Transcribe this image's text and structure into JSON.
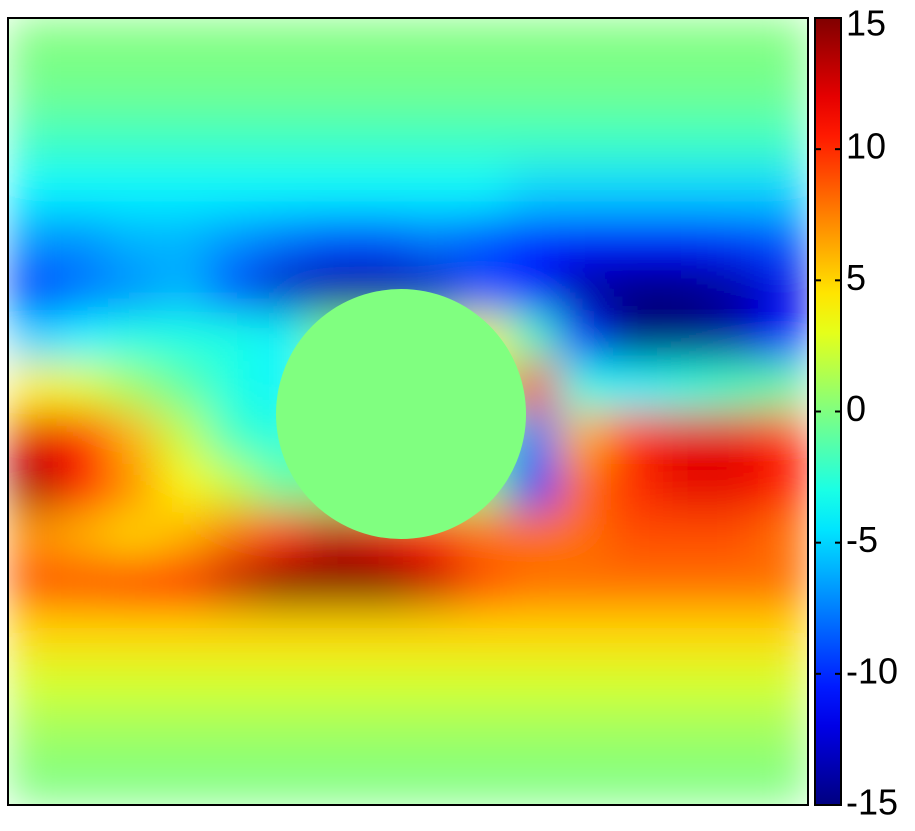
{
  "chart_data": {
    "type": "heatmap",
    "colormap": "jet",
    "values": [
      [
        0,
        0,
        0,
        0,
        0,
        0,
        0,
        0,
        0,
        0,
        0,
        0,
        0,
        0,
        0,
        0
      ],
      [
        -0.5,
        -0.5,
        -0.5,
        -0.5,
        -0.5,
        -0.5,
        -0.5,
        -0.5,
        -0.5,
        -0.5,
        -0.5,
        -0.5,
        -0.5,
        -0.5,
        -0.5,
        -0.5
      ],
      [
        -2,
        -2,
        -2,
        -2,
        -2,
        -2,
        -2,
        -2,
        -2,
        -2,
        -2,
        -2,
        -2,
        -2,
        -2,
        -2
      ],
      [
        -4,
        -4,
        -4,
        -4,
        -4,
        -4,
        -4,
        -4,
        -4,
        -4,
        -5,
        -5,
        -5,
        -5,
        -5,
        -5
      ],
      [
        -7,
        -7,
        -6,
        -6,
        -7,
        -8,
        -9,
        -9,
        -8,
        -9,
        -10,
        -11,
        -11,
        -11,
        -10,
        -9
      ],
      [
        -10,
        -8,
        -7,
        -6,
        -9,
        -13,
        -14,
        -14,
        -13,
        -9,
        -11,
        -14,
        -15,
        -15,
        -14,
        -12
      ],
      [
        -5,
        -4,
        -3,
        -3,
        -3,
        -4,
        0,
        0,
        0,
        4,
        -2,
        -10,
        -15,
        -15,
        -14,
        -11
      ],
      [
        4,
        3,
        1,
        -1,
        -3,
        -4,
        0,
        0,
        0,
        0,
        10,
        -3,
        -4,
        -3,
        -2,
        -1
      ],
      [
        12,
        10,
        6,
        2,
        -2,
        -3,
        0,
        0,
        0,
        0,
        -8,
        6,
        10,
        12,
        12,
        10
      ],
      [
        14,
        11,
        7,
        4,
        2,
        -1,
        0,
        0,
        0,
        0,
        -10,
        8,
        10,
        12,
        12,
        11
      ],
      [
        7,
        6,
        5,
        6,
        8,
        10,
        13,
        12,
        10,
        8,
        8,
        8,
        9,
        9,
        9,
        8
      ],
      [
        9,
        9,
        10,
        11,
        13,
        15,
        15,
        15,
        13,
        9,
        8,
        8,
        8,
        8,
        8,
        8
      ],
      [
        5,
        5,
        5,
        5,
        5,
        5,
        5,
        5,
        5,
        5,
        5,
        5,
        5,
        5,
        5,
        5
      ],
      [
        2.5,
        2.5,
        2.5,
        2.5,
        2.5,
        2.5,
        2.5,
        2.5,
        2.5,
        2.5,
        2.5,
        2.5,
        2.5,
        2.5,
        2.5,
        2.5
      ],
      [
        1,
        1,
        1,
        1,
        1,
        1,
        1,
        1,
        1,
        1,
        1,
        1,
        1,
        1,
        1,
        1
      ],
      [
        0,
        0,
        0,
        0,
        0,
        0,
        0,
        0,
        0,
        0,
        0,
        0,
        0,
        0,
        0,
        0
      ]
    ],
    "clim": [
      -15,
      15
    ],
    "cticks": [
      -15,
      -10,
      -5,
      0,
      5,
      10,
      15
    ]
  }
}
